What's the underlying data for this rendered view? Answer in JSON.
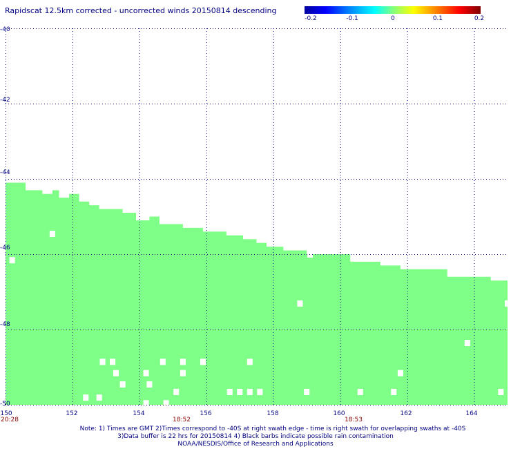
{
  "title": "Rapidscat 12.5km corrected - uncorrected winds 20150814 descending",
  "colorbar": {
    "ticks": [
      "-0.2",
      "-0.1",
      "0",
      "0.1",
      "0.2"
    ],
    "range": [
      -0.2,
      0.2
    ]
  },
  "y_axis": {
    "ticks": [
      "-40",
      "-42",
      "-44",
      "-46",
      "-48",
      "-50"
    ],
    "range": [
      -40,
      -50
    ]
  },
  "x_axis": {
    "ticks": [
      "150",
      "152",
      "154",
      "156",
      "158",
      "160",
      "162",
      "164"
    ],
    "range": [
      150,
      165
    ]
  },
  "times": [
    {
      "label": "20:28",
      "lon": 150.1
    },
    {
      "label": "18:52",
      "lon": 155.3
    },
    {
      "label": "18:53",
      "lon": 160.9
    }
  ],
  "notes": {
    "line1": "Note: 1) Times are GMT 2)Times correspond to -40S at right swath edge - time is right swath for overlapping swaths at -40S",
    "line2": "3)Data buffer is 22 hrs for 20150814 4) Black barbs indicate possible rain contamination",
    "line3": "NOAA/NESDIS/Office of Research and Applications"
  },
  "colors": {
    "swath": "#80ff88",
    "grid": "#000080",
    "text": "#000080",
    "time": "#8b0000"
  },
  "swath_edge": [
    [
      150.0,
      -44.1
    ],
    [
      150.6,
      -44.3
    ],
    [
      151.1,
      -44.4
    ],
    [
      151.4,
      -44.3
    ],
    [
      151.6,
      -44.5
    ],
    [
      151.9,
      -44.4
    ],
    [
      152.2,
      -44.6
    ],
    [
      152.5,
      -44.7
    ],
    [
      152.8,
      -44.8
    ],
    [
      153.5,
      -44.9
    ],
    [
      153.9,
      -45.1
    ],
    [
      154.3,
      -45.0
    ],
    [
      154.6,
      -45.2
    ],
    [
      155.3,
      -45.3
    ],
    [
      155.9,
      -45.4
    ],
    [
      156.6,
      -45.5
    ],
    [
      157.1,
      -45.6
    ],
    [
      157.5,
      -45.7
    ],
    [
      157.8,
      -45.8
    ],
    [
      158.3,
      -45.9
    ],
    [
      159.0,
      -46.0
    ],
    [
      160.3,
      -46.2
    ],
    [
      161.2,
      -46.3
    ],
    [
      161.8,
      -46.4
    ],
    [
      162.5,
      -46.4
    ],
    [
      163.2,
      -46.6
    ],
    [
      164.0,
      -46.6
    ],
    [
      164.5,
      -46.7
    ],
    [
      165.0,
      -46.8
    ]
  ],
  "missing_cells": [
    [
      150.2,
      -46.15
    ],
    [
      151.4,
      -45.45
    ],
    [
      159.1,
      -46.0
    ],
    [
      158.8,
      -47.3
    ],
    [
      165.0,
      -47.3
    ],
    [
      163.8,
      -48.35
    ],
    [
      152.9,
      -48.85
    ],
    [
      153.2,
      -48.85
    ],
    [
      154.7,
      -48.85
    ],
    [
      155.3,
      -48.85
    ],
    [
      155.9,
      -48.85
    ],
    [
      157.3,
      -48.85
    ],
    [
      153.3,
      -49.15
    ],
    [
      154.2,
      -49.15
    ],
    [
      155.3,
      -49.15
    ],
    [
      161.8,
      -49.15
    ],
    [
      153.5,
      -49.45
    ],
    [
      154.3,
      -49.45
    ],
    [
      152.4,
      -49.8
    ],
    [
      152.8,
      -49.8
    ],
    [
      155.1,
      -49.65
    ],
    [
      156.7,
      -49.65
    ],
    [
      157.0,
      -49.65
    ],
    [
      157.3,
      -49.65
    ],
    [
      157.6,
      -49.65
    ],
    [
      159.0,
      -49.65
    ],
    [
      160.6,
      -49.65
    ],
    [
      161.6,
      -49.65
    ],
    [
      164.8,
      -49.65
    ],
    [
      154.2,
      -49.95
    ],
    [
      154.8,
      -49.95
    ]
  ]
}
